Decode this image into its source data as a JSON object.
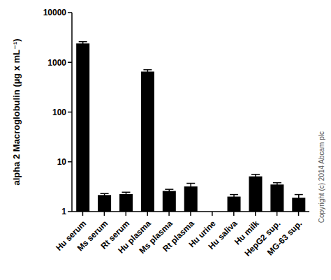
{
  "chart_data": {
    "type": "bar",
    "y_label": "alpha 2 Macroglobulin (µg x mL⁻¹)",
    "annotation": "Copyright (c) 2014 Abcam plc",
    "categories": [
      "Hu serum",
      "Ms serum",
      "Rt serum",
      "Hu plasma",
      "Ms plasma",
      "Rt plasma",
      "Hu urine",
      "Hu saliva",
      "Hu milk",
      "HepG2 sup.",
      "MG-63 sup."
    ],
    "values": [
      2400,
      2.15,
      2.25,
      650,
      2.6,
      3.2,
      null,
      2.0,
      5.1,
      3.5,
      1.9
    ],
    "errors": [
      200,
      0.15,
      0.2,
      60,
      0.2,
      0.5,
      null,
      0.2,
      0.5,
      0.3,
      0.3
    ],
    "color": "#000000",
    "log": "y",
    "ylim": [
      1,
      10000
    ],
    "yticks": [
      1,
      10,
      100,
      1000,
      10000
    ],
    "grid": false
  }
}
